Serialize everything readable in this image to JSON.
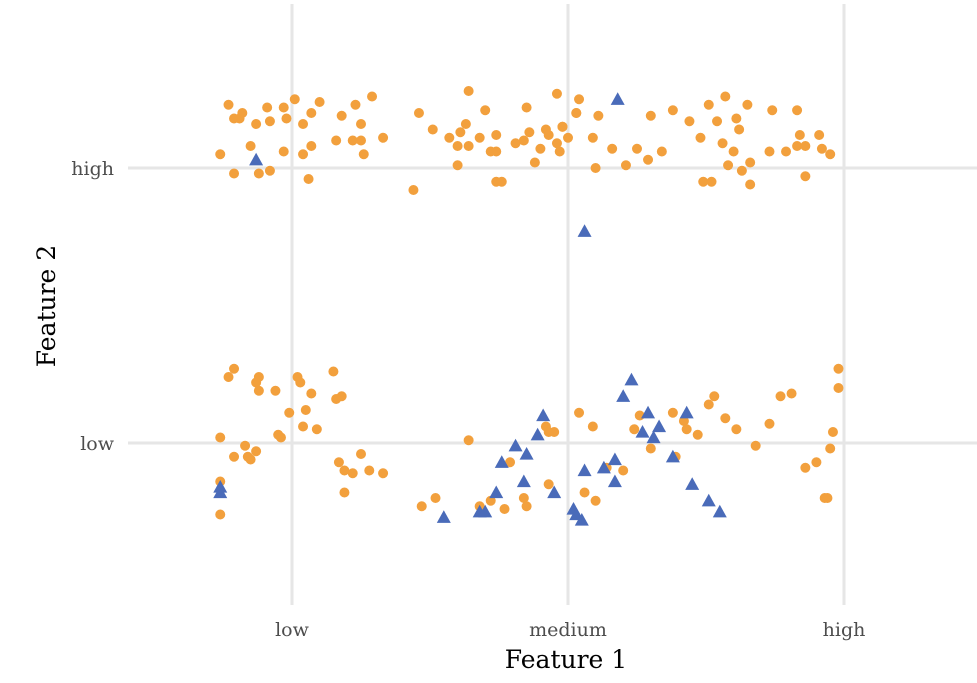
{
  "chart_data": {
    "type": "scatter",
    "title": "",
    "xlabel": "Feature 1",
    "ylabel": "Feature 2",
    "x_categories": [
      "low",
      "medium",
      "high"
    ],
    "y_categories": [
      "low",
      "high"
    ],
    "xlim": [
      0.56,
      2.98
    ],
    "ylim": [
      0.5,
      2.49
    ],
    "grid": true,
    "legend": "none",
    "colors": {
      "orange": "#f2a03d",
      "blue": "#4a6bb9"
    },
    "series": [
      {
        "color": "orange",
        "marker": "circle",
        "points": [
          [
            0.74,
            2.05
          ],
          [
            0.77,
            2.23
          ],
          [
            0.79,
            2.18
          ],
          [
            0.79,
            1.98
          ],
          [
            0.81,
            2.18
          ],
          [
            0.82,
            2.2
          ],
          [
            0.85,
            2.08
          ],
          [
            0.87,
            2.16
          ],
          [
            0.88,
            1.98
          ],
          [
            0.91,
            2.22
          ],
          [
            0.92,
            2.17
          ],
          [
            0.92,
            1.99
          ],
          [
            0.97,
            2.22
          ],
          [
            0.97,
            2.06
          ],
          [
            0.98,
            2.18
          ],
          [
            1.01,
            2.25
          ],
          [
            1.04,
            2.05
          ],
          [
            1.04,
            2.16
          ],
          [
            1.06,
            1.96
          ],
          [
            1.07,
            2.08
          ],
          [
            1.07,
            2.2
          ],
          [
            1.1,
            2.24
          ],
          [
            1.16,
            2.1
          ],
          [
            1.18,
            2.19
          ],
          [
            1.22,
            2.1
          ],
          [
            1.23,
            2.23
          ],
          [
            1.25,
            2.16
          ],
          [
            1.25,
            2.1
          ],
          [
            1.26,
            2.05
          ],
          [
            1.29,
            2.26
          ],
          [
            1.33,
            2.11
          ],
          [
            1.44,
            1.92
          ],
          [
            1.46,
            2.2
          ],
          [
            1.51,
            2.14
          ],
          [
            1.57,
            2.11
          ],
          [
            1.6,
            2.08
          ],
          [
            1.6,
            2.01
          ],
          [
            1.61,
            2.13
          ],
          [
            1.63,
            2.16
          ],
          [
            1.64,
            2.28
          ],
          [
            1.64,
            2.08
          ],
          [
            1.68,
            2.11
          ],
          [
            1.7,
            2.21
          ],
          [
            1.72,
            2.06
          ],
          [
            1.74,
            2.06
          ],
          [
            1.74,
            1.95
          ],
          [
            1.74,
            2.12
          ],
          [
            1.76,
            1.95
          ],
          [
            1.81,
            2.09
          ],
          [
            1.84,
            2.1
          ],
          [
            1.85,
            2.22
          ],
          [
            1.86,
            2.13
          ],
          [
            1.88,
            2.02
          ],
          [
            1.9,
            2.07
          ],
          [
            1.92,
            2.14
          ],
          [
            1.93,
            2.12
          ],
          [
            1.96,
            2.09
          ],
          [
            1.96,
            2.27
          ],
          [
            1.97,
            2.06
          ],
          [
            1.98,
            2.15
          ],
          [
            1.98,
            2.15
          ],
          [
            2.0,
            2.11
          ],
          [
            2.03,
            2.2
          ],
          [
            2.03,
            2.2
          ],
          [
            2.04,
            2.25
          ],
          [
            2.09,
            2.11
          ],
          [
            2.1,
            2.0
          ],
          [
            2.11,
            2.19
          ],
          [
            2.16,
            2.07
          ],
          [
            2.21,
            2.01
          ],
          [
            2.25,
            2.07
          ],
          [
            2.29,
            2.03
          ],
          [
            2.3,
            2.19
          ],
          [
            2.34,
            2.06
          ],
          [
            2.38,
            2.21
          ],
          [
            2.44,
            2.17
          ],
          [
            2.48,
            2.11
          ],
          [
            2.49,
            1.95
          ],
          [
            2.51,
            2.23
          ],
          [
            2.52,
            1.95
          ],
          [
            2.54,
            2.17
          ],
          [
            2.56,
            2.09
          ],
          [
            2.57,
            2.26
          ],
          [
            2.58,
            2.01
          ],
          [
            2.6,
            2.06
          ],
          [
            2.61,
            2.18
          ],
          [
            2.62,
            2.14
          ],
          [
            2.63,
            1.99
          ],
          [
            2.65,
            2.23
          ],
          [
            2.66,
            2.02
          ],
          [
            2.66,
            1.94
          ],
          [
            2.73,
            2.06
          ],
          [
            2.74,
            2.21
          ],
          [
            2.79,
            2.06
          ],
          [
            2.83,
            2.21
          ],
          [
            2.83,
            2.08
          ],
          [
            2.84,
            2.12
          ],
          [
            2.86,
            1.97
          ],
          [
            2.86,
            2.08
          ],
          [
            2.91,
            2.12
          ],
          [
            2.92,
            2.07
          ],
          [
            2.95,
            2.05
          ],
          [
            0.74,
            0.86
          ],
          [
            0.74,
            0.74
          ],
          [
            0.74,
            1.02
          ],
          [
            0.77,
            1.24
          ],
          [
            0.79,
            1.27
          ],
          [
            0.79,
            0.95
          ],
          [
            0.83,
            0.99
          ],
          [
            0.84,
            0.95
          ],
          [
            0.85,
            0.94
          ],
          [
            0.87,
            1.22
          ],
          [
            0.87,
            0.97
          ],
          [
            0.88,
            1.19
          ],
          [
            0.88,
            1.24
          ],
          [
            0.94,
            1.19
          ],
          [
            0.95,
            1.03
          ],
          [
            0.96,
            1.02
          ],
          [
            0.99,
            1.11
          ],
          [
            1.02,
            1.24
          ],
          [
            1.03,
            1.22
          ],
          [
            1.04,
            1.06
          ],
          [
            1.05,
            1.12
          ],
          [
            1.07,
            1.18
          ],
          [
            1.09,
            1.05
          ],
          [
            1.15,
            1.26
          ],
          [
            1.16,
            1.16
          ],
          [
            1.17,
            0.93
          ],
          [
            1.18,
            1.17
          ],
          [
            1.19,
            0.82
          ],
          [
            1.19,
            0.9
          ],
          [
            1.22,
            0.89
          ],
          [
            1.25,
            0.96
          ],
          [
            1.28,
            0.9
          ],
          [
            1.33,
            0.89
          ],
          [
            1.47,
            0.77
          ],
          [
            1.52,
            0.8
          ],
          [
            1.64,
            1.01
          ],
          [
            1.68,
            0.77
          ],
          [
            1.72,
            0.79
          ],
          [
            1.77,
            0.76
          ],
          [
            1.79,
            0.93
          ],
          [
            1.84,
            0.8
          ],
          [
            1.85,
            0.77
          ],
          [
            1.92,
            1.06
          ],
          [
            1.93,
            1.04
          ],
          [
            1.93,
            0.85
          ],
          [
            1.95,
            1.04
          ],
          [
            2.04,
            1.11
          ],
          [
            2.06,
            0.82
          ],
          [
            2.09,
            1.06
          ],
          [
            2.1,
            0.79
          ],
          [
            2.14,
            0.91
          ],
          [
            2.2,
            0.9
          ],
          [
            2.24,
            1.05
          ],
          [
            2.26,
            1.1
          ],
          [
            2.3,
            0.98
          ],
          [
            2.38,
            1.11
          ],
          [
            2.39,
            0.95
          ],
          [
            2.42,
            1.08
          ],
          [
            2.43,
            1.05
          ],
          [
            2.47,
            1.03
          ],
          [
            2.51,
            1.14
          ],
          [
            2.53,
            1.17
          ],
          [
            2.57,
            1.09
          ],
          [
            2.61,
            1.05
          ],
          [
            2.68,
            0.99
          ],
          [
            2.73,
            1.07
          ],
          [
            2.77,
            1.17
          ],
          [
            2.81,
            1.18
          ],
          [
            2.86,
            0.91
          ],
          [
            2.9,
            0.93
          ],
          [
            2.93,
            0.8
          ],
          [
            2.94,
            0.8
          ],
          [
            2.95,
            0.98
          ],
          [
            2.96,
            1.04
          ],
          [
            2.98,
            1.2
          ],
          [
            2.98,
            1.27
          ]
        ]
      },
      {
        "color": "blue",
        "marker": "triangle",
        "points": [
          [
            0.87,
            2.03
          ],
          [
            2.06,
            1.77
          ],
          [
            2.18,
            2.25
          ],
          [
            0.74,
            0.82
          ],
          [
            0.74,
            0.84
          ],
          [
            1.55,
            0.73
          ],
          [
            1.68,
            0.75
          ],
          [
            1.7,
            0.75
          ],
          [
            1.74,
            0.82
          ],
          [
            1.76,
            0.93
          ],
          [
            1.81,
            0.99
          ],
          [
            1.84,
            0.86
          ],
          [
            1.85,
            0.96
          ],
          [
            1.89,
            1.03
          ],
          [
            1.91,
            1.1
          ],
          [
            1.95,
            0.82
          ],
          [
            2.02,
            0.76
          ],
          [
            2.03,
            0.74
          ],
          [
            2.05,
            0.72
          ],
          [
            2.06,
            0.9
          ],
          [
            2.13,
            0.91
          ],
          [
            2.17,
            0.86
          ],
          [
            2.17,
            0.94
          ],
          [
            2.2,
            1.17
          ],
          [
            2.23,
            1.23
          ],
          [
            2.27,
            1.04
          ],
          [
            2.29,
            1.11
          ],
          [
            2.31,
            1.02
          ],
          [
            2.33,
            1.06
          ],
          [
            2.38,
            0.95
          ],
          [
            2.43,
            1.11
          ],
          [
            2.45,
            0.85
          ],
          [
            2.51,
            0.79
          ],
          [
            2.55,
            0.75
          ]
        ]
      }
    ]
  }
}
